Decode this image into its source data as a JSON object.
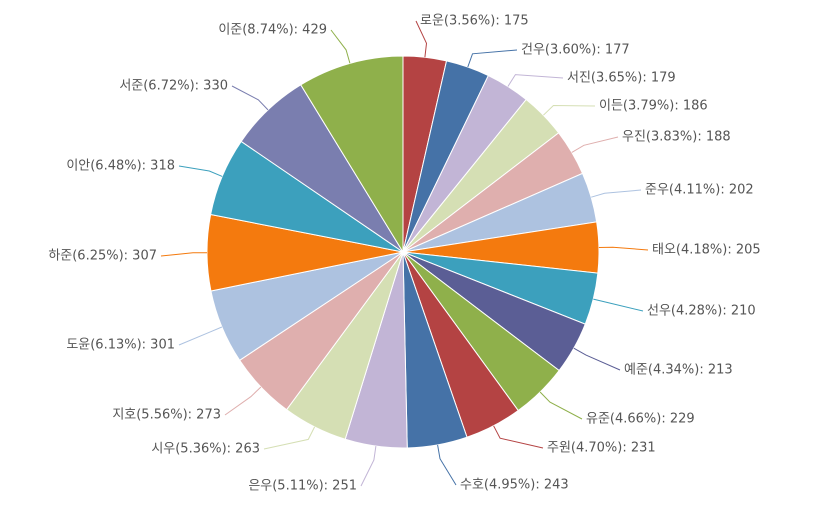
{
  "chart_data": {
    "type": "pie",
    "title": "",
    "start_angle_deg": 0,
    "direction": "clockwise",
    "slices": [
      {
        "label": "로운",
        "percent": "3.56%",
        "value": 175,
        "color": "#B44343"
      },
      {
        "label": "건우",
        "percent": "3.60%",
        "value": 177,
        "color": "#4572A7"
      },
      {
        "label": "서진",
        "percent": "3.65%",
        "value": 179,
        "color": "#C2B5D6"
      },
      {
        "label": "이든",
        "percent": "3.79%",
        "value": 186,
        "color": "#D5DFB4"
      },
      {
        "label": "우진",
        "percent": "3.83%",
        "value": 188,
        "color": "#DFAFAE"
      },
      {
        "label": "준우",
        "percent": "4.11%",
        "value": 202,
        "color": "#ADC2E0"
      },
      {
        "label": "태오",
        "percent": "4.18%",
        "value": 205,
        "color": "#F47A0E"
      },
      {
        "label": "선우",
        "percent": "4.28%",
        "value": 210,
        "color": "#3CA0BD"
      },
      {
        "label": "예준",
        "percent": "4.34%",
        "value": 213,
        "color": "#5B5E95"
      },
      {
        "label": "유준",
        "percent": "4.66%",
        "value": 229,
        "color": "#8FB04B"
      },
      {
        "label": "주원",
        "percent": "4.70%",
        "value": 231,
        "color": "#B44343"
      },
      {
        "label": "수호",
        "percent": "4.95%",
        "value": 243,
        "color": "#4572A7"
      },
      {
        "label": "은우",
        "percent": "5.11%",
        "value": 251,
        "color": "#C2B5D6"
      },
      {
        "label": "시우",
        "percent": "5.36%",
        "value": 263,
        "color": "#D5DFB4"
      },
      {
        "label": "지호",
        "percent": "5.56%",
        "value": 273,
        "color": "#DFAFAE"
      },
      {
        "label": "도윤",
        "percent": "6.13%",
        "value": 301,
        "color": "#ADC2E0"
      },
      {
        "label": "하준",
        "percent": "6.25%",
        "value": 307,
        "color": "#F47A0E"
      },
      {
        "label": "이안",
        "percent": "6.48%",
        "value": 318,
        "color": "#3CA0BD"
      },
      {
        "label": "서준",
        "percent": "6.72%",
        "value": 330,
        "color": "#7A7EAF"
      },
      {
        "label": "이준",
        "percent": "8.74%",
        "value": 429,
        "color": "#8FB04B"
      }
    ]
  }
}
